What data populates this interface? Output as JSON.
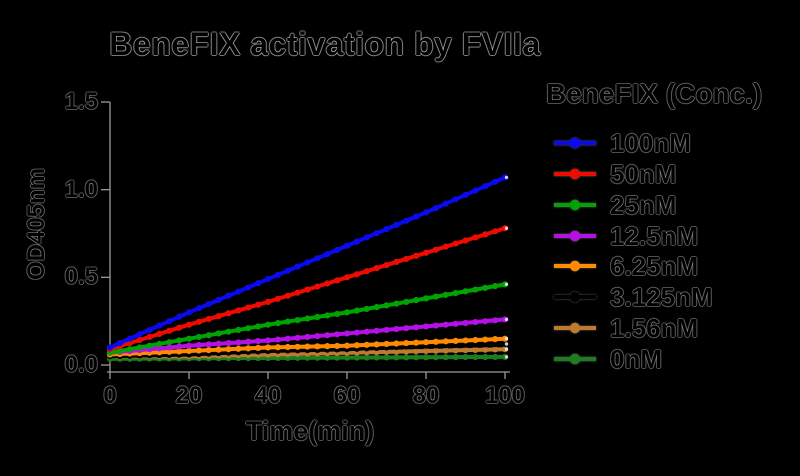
{
  "figure": {
    "background": "#000000",
    "axis_color": "#9b9b9b",
    "text_color": "#000000",
    "halo_color": "#ebebeb"
  },
  "chart_data": {
    "type": "line",
    "title": "BeneFIX activation by FVIIa",
    "xlabel": "Time(min)",
    "ylabel": "OD405nm",
    "legend_title": "BeneFIX (Conc.)",
    "legend_position": "right",
    "grid": false,
    "xlim": [
      0,
      100
    ],
    "ylim": [
      0.0,
      1.5
    ],
    "x_tick_values": [
      0,
      20,
      40,
      60,
      80,
      100
    ],
    "x_tick_labels": [
      "0",
      "20",
      "40",
      "60",
      "80",
      "100"
    ],
    "y_tick_values": [
      0.0,
      0.5,
      1.0,
      1.5
    ],
    "y_tick_labels": [
      "0.0",
      "0.5",
      "1.0",
      "1.5"
    ],
    "x": [
      0,
      20,
      40,
      60,
      80,
      100
    ],
    "series": [
      {
        "name": "100nM",
        "color": "#0A0AF0",
        "values": [
          0.1,
          0.3,
          0.49,
          0.68,
          0.87,
          1.07
        ]
      },
      {
        "name": "50nM",
        "color": "#EE0B00",
        "values": [
          0.09,
          0.23,
          0.36,
          0.5,
          0.64,
          0.78
        ]
      },
      {
        "name": "25nM",
        "color": "#00A302",
        "values": [
          0.07,
          0.15,
          0.23,
          0.3,
          0.38,
          0.46
        ]
      },
      {
        "name": "12.5nM",
        "color": "#B511E6",
        "values": [
          0.07,
          0.11,
          0.14,
          0.18,
          0.22,
          0.26
        ]
      },
      {
        "name": "6.25nM",
        "color": "#FF8C00",
        "values": [
          0.06,
          0.08,
          0.1,
          0.11,
          0.13,
          0.15
        ]
      },
      {
        "name": "3.125nM",
        "color": "#000000",
        "values": [
          0.05,
          0.06,
          0.08,
          0.09,
          0.11,
          0.12
        ]
      },
      {
        "name": "1.56nM",
        "color": "#BE7B30",
        "values": [
          0.05,
          0.05,
          0.06,
          0.07,
          0.08,
          0.09
        ]
      },
      {
        "name": "0nM",
        "color": "#1E7D1E",
        "values": [
          0.035,
          0.038,
          0.04,
          0.042,
          0.044,
          0.046
        ]
      }
    ]
  }
}
